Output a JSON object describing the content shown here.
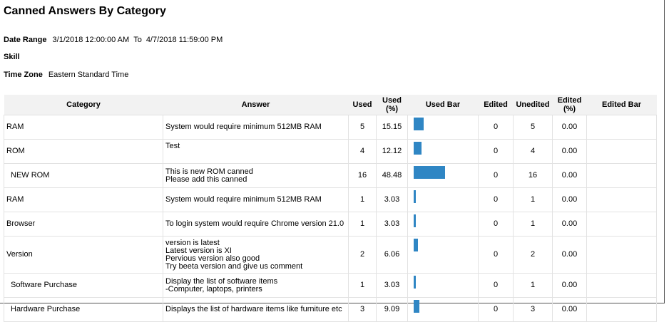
{
  "header": {
    "title": "Canned Answers By Category"
  },
  "filters": {
    "date_range_label": "Date Range",
    "date_from": "3/1/2018 12:00:00 AM",
    "to_label": "To",
    "date_to": "4/7/2018 11:59:00 PM",
    "skill_label": "Skill",
    "time_zone_label": "Time Zone",
    "time_zone": "Eastern Standard Time"
  },
  "table": {
    "columns": [
      "Category",
      "Answer",
      "Used",
      "Used (%)",
      "Used Bar",
      "Edited",
      "Unedited",
      "Edited (%)",
      "Edited Bar"
    ],
    "rows": [
      {
        "category": "RAM",
        "answer": [
          "System would require minimum 512MB RAM"
        ],
        "used": 5,
        "used_pct": 15.15,
        "edited": 0,
        "unedited": 5,
        "edited_pct": "0.00"
      },
      {
        "category": "ROM",
        "answer": [
          "Test"
        ],
        "used": 4,
        "used_pct": 12.12,
        "edited": 0,
        "unedited": 4,
        "edited_pct": "0.00"
      },
      {
        "category": "NEW ROM",
        "answer": [
          "This is new ROM canned",
          "Please add this canned"
        ],
        "used": 16,
        "used_pct": 48.48,
        "edited": 0,
        "unedited": 16,
        "edited_pct": "0.00"
      },
      {
        "category": "RAM",
        "answer": [
          "System would require minimum 512MB RAM"
        ],
        "used": 1,
        "used_pct": 3.03,
        "edited": 0,
        "unedited": 1,
        "edited_pct": "0.00"
      },
      {
        "category": "Browser",
        "answer": [
          "To login system would require Chrome version 21.0"
        ],
        "used": 1,
        "used_pct": 3.03,
        "edited": 0,
        "unedited": 1,
        "edited_pct": "0.00"
      },
      {
        "category": "Version",
        "answer": [
          "version is latest",
          "Latest version is XI",
          "Pervious version also good",
          "Try beeta version and give us comment"
        ],
        "used": 2,
        "used_pct": 6.06,
        "edited": 0,
        "unedited": 2,
        "edited_pct": "0.00"
      },
      {
        "category": "Software Purchase",
        "answer": [
          "Display the list of software items",
          "-Computer, laptops, printers"
        ],
        "used": 1,
        "used_pct": 3.03,
        "edited": 0,
        "unedited": 1,
        "edited_pct": "0.00"
      },
      {
        "category": "Hardware Purchase",
        "answer": [
          "Displays the list of hardware items like furniture etc"
        ],
        "used": 3,
        "used_pct": 9.09,
        "edited": 0,
        "unedited": 3,
        "edited_pct": "0.00"
      }
    ]
  }
}
